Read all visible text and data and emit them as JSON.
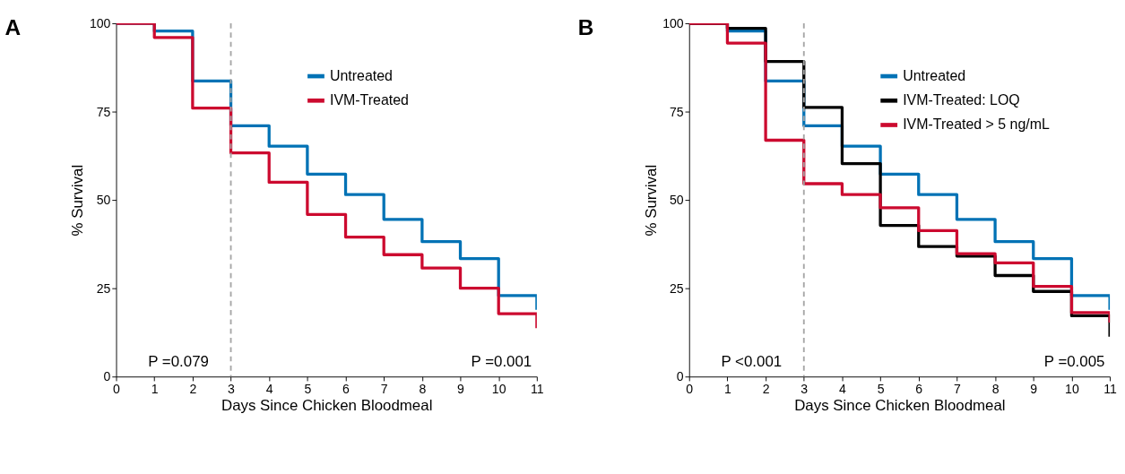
{
  "chart_data": [
    {
      "type": "step",
      "title": "A",
      "xlabel": "Days Since Chicken Bloodmeal",
      "ylabel": "% Survival",
      "xlim": [
        0,
        11
      ],
      "ylim": [
        0,
        100
      ],
      "xticks": [
        0,
        1,
        2,
        3,
        4,
        5,
        6,
        7,
        8,
        9,
        10,
        11
      ],
      "yticks": [
        0,
        25,
        50,
        75,
        100
      ],
      "grid": false,
      "legend": "top right",
      "line_style": "solid",
      "x": [
        0,
        1,
        2,
        3,
        4,
        5,
        6,
        7,
        8,
        9,
        10,
        11,
        11
      ],
      "series": [
        {
          "name": "Untreated",
          "color": "#0072b5",
          "values": [
            100,
            97.8,
            83.7,
            71,
            65.2,
            57.3,
            51.5,
            44.5,
            38.2,
            33.4,
            22.9,
            22.9,
            18.9
          ]
        },
        {
          "name": "IVM-Treated",
          "color": "#cc0a2f",
          "values": [
            100,
            96,
            76,
            63.3,
            55,
            45.9,
            39.5,
            34.5,
            30.7,
            25,
            17.8,
            17.8,
            13.7
          ]
        }
      ],
      "ref_lines": [
        {
          "axis": "x",
          "value": 3,
          "color": "#a6a6a6",
          "line_style": "dashed"
        }
      ],
      "annotations": [
        "P =0.079",
        "P =0.001"
      ]
    },
    {
      "type": "step",
      "title": "B",
      "xlabel": "Days Since Chicken Bloodmeal",
      "ylabel": "% Survival",
      "xlim": [
        0,
        11
      ],
      "ylim": [
        0,
        100
      ],
      "xticks": [
        0,
        1,
        2,
        3,
        4,
        5,
        6,
        7,
        8,
        9,
        10,
        11
      ],
      "yticks": [
        0,
        25,
        50,
        75,
        100
      ],
      "grid": false,
      "legend": "top right",
      "line_style": "solid",
      "x": [
        0,
        1,
        2,
        3,
        4,
        5,
        6,
        7,
        8,
        9,
        10,
        11,
        11
      ],
      "series": [
        {
          "name": "Untreated",
          "color": "#0072b5",
          "values": [
            100,
            97.8,
            83.7,
            71,
            65.2,
            57.3,
            51.5,
            44.5,
            38.2,
            33.4,
            22.9,
            22.9,
            18.9
          ]
        },
        {
          "name": "IVM-Treated: LOQ",
          "color": "#000000",
          "values": [
            100,
            98.6,
            89.2,
            76.2,
            60.3,
            42.8,
            36.8,
            34.1,
            28.6,
            24.1,
            17.2,
            17.2,
            11.3
          ]
        },
        {
          "name": "IVM-Treated > 5 ng/mL",
          "color": "#cc0a2f",
          "values": [
            100,
            94.4,
            66.9,
            54.6,
            51.5,
            47.8,
            41.3,
            34.8,
            32.2,
            25.5,
            18.1,
            18.1,
            15.3
          ]
        }
      ],
      "ref_lines": [
        {
          "axis": "x",
          "value": 3,
          "color": "#a6a6a6",
          "line_style": "dashed"
        }
      ],
      "annotations": [
        "P <0.001",
        "P =0.005"
      ]
    }
  ]
}
